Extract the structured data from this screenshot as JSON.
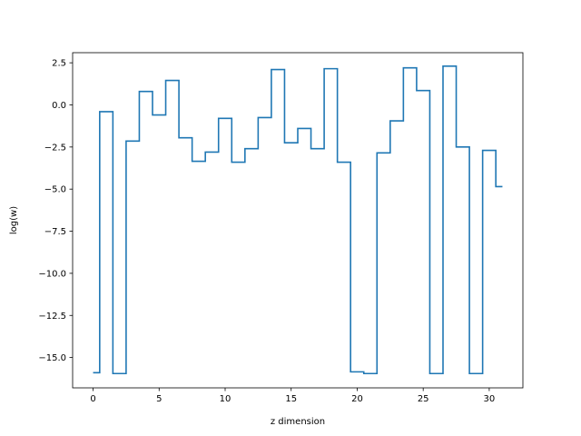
{
  "chart_data": {
    "type": "line",
    "step": "mid",
    "xlabel": "z dimension",
    "ylabel": "log(w)",
    "xlim": [
      -1.55,
      32.55
    ],
    "ylim": [
      -16.8,
      3.1
    ],
    "xticks": [
      0,
      5,
      10,
      15,
      20,
      25,
      30
    ],
    "xtick_labels": [
      "0",
      "5",
      "10",
      "15",
      "20",
      "25",
      "30"
    ],
    "yticks": [
      2.5,
      0.0,
      -2.5,
      -5.0,
      -7.5,
      -10.0,
      -12.5,
      -15.0
    ],
    "ytick_labels": [
      "2.5",
      "0.0",
      "−2.5",
      "−5.0",
      "−7.5",
      "−10.0",
      "−12.5",
      "−15.0"
    ],
    "line_color": "#1f77b4",
    "grid": false,
    "series": [
      {
        "x": [
          0,
          1,
          2,
          3,
          4,
          5,
          6,
          7,
          8,
          9,
          10,
          11,
          12,
          13,
          14,
          15,
          16,
          17,
          18,
          19,
          20,
          21,
          22,
          23,
          24,
          25,
          26,
          27,
          28,
          29,
          30,
          31
        ],
        "values": [
          -15.9,
          -0.4,
          -15.95,
          -2.15,
          0.8,
          -0.6,
          1.45,
          -1.95,
          -3.35,
          -2.8,
          -0.8,
          -3.4,
          -2.6,
          -0.75,
          2.1,
          -2.25,
          -1.4,
          -2.6,
          2.15,
          -3.4,
          -15.85,
          -15.95,
          -2.85,
          -0.95,
          2.2,
          0.85,
          -15.95,
          2.3,
          -2.5,
          -15.95,
          -2.7,
          -4.85
        ]
      }
    ]
  }
}
